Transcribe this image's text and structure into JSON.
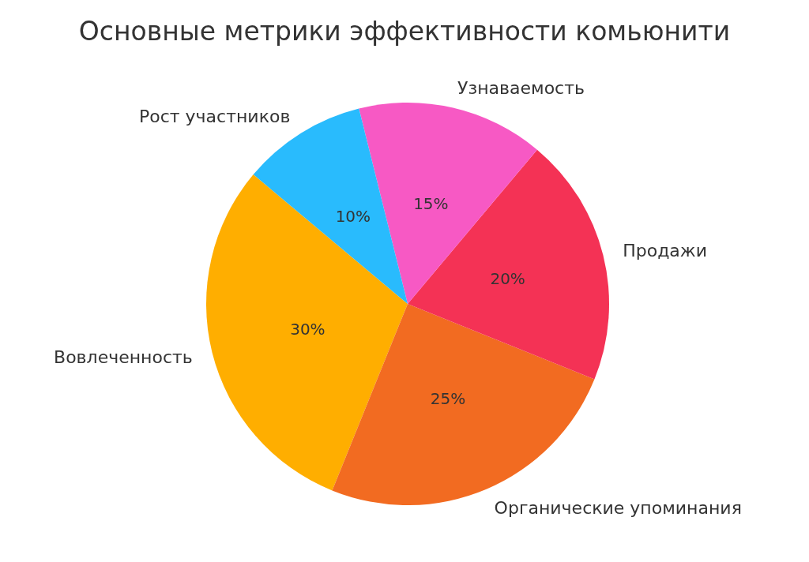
{
  "chart_data": {
    "type": "pie",
    "title": "Основные метрики эффективности комьюнити",
    "categories": [
      "Вовлеченность",
      "Органические упоминания",
      "Продажи",
      "Узнаваемость",
      "Рост участников"
    ],
    "values": [
      30,
      25,
      20,
      15,
      10
    ],
    "colors": [
      "#ffae00",
      "#f26b21",
      "#f43255",
      "#f759c4",
      "#29bbfd"
    ],
    "value_labels": [
      "30%",
      "25%",
      "20%",
      "15%",
      "10%"
    ]
  }
}
